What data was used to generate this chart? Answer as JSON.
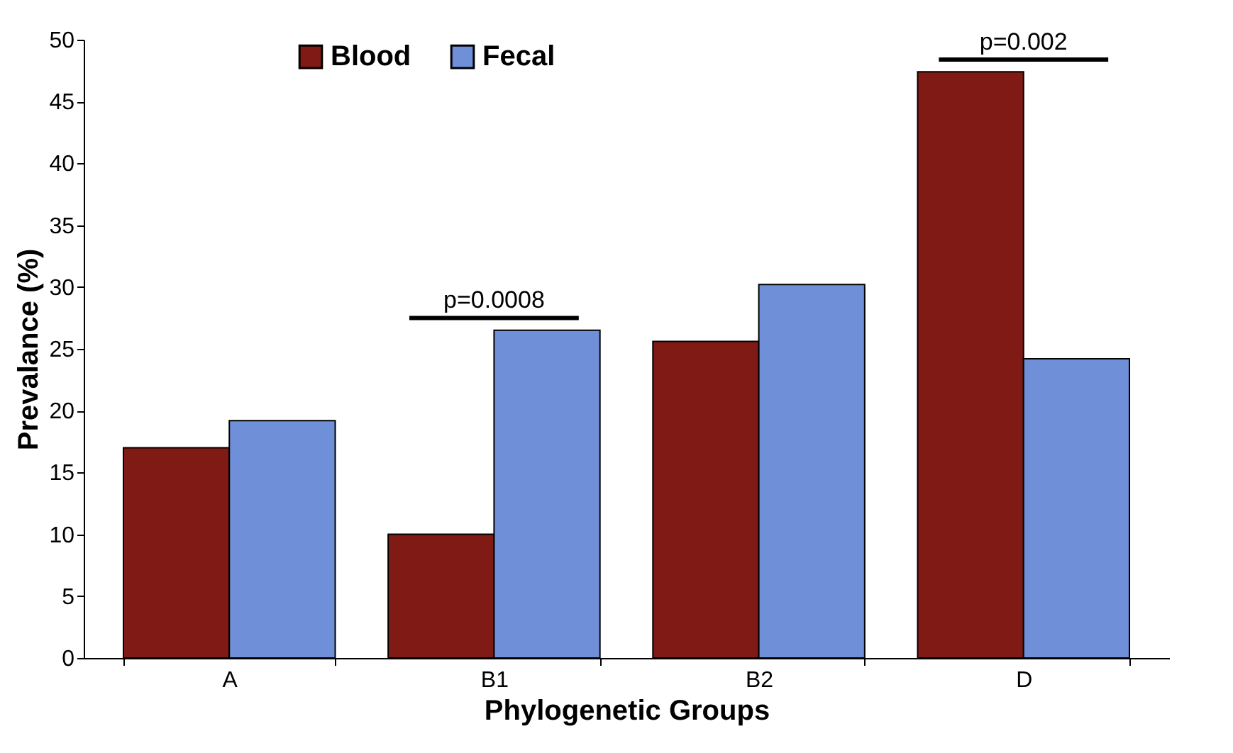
{
  "chart_data": {
    "type": "bar",
    "xlabel": "Phylogenetic Groups",
    "ylabel": "Prevalance (%)",
    "categories": [
      "A",
      "B1",
      "B2",
      "D"
    ],
    "series": [
      {
        "name": "Blood",
        "color": "#7f1a14",
        "values": [
          17,
          10,
          25.6,
          47.4
        ]
      },
      {
        "name": "Fecal",
        "color": "#6f8fd8",
        "values": [
          19.2,
          26.5,
          30.2,
          24.2
        ]
      }
    ],
    "ylim": [
      0,
      50
    ],
    "yticks": [
      0,
      5,
      10,
      15,
      20,
      25,
      30,
      35,
      40,
      45,
      50
    ],
    "grid": false,
    "legend": "top left",
    "annotations": [
      "p=0.0008",
      "p=0.002"
    ]
  }
}
